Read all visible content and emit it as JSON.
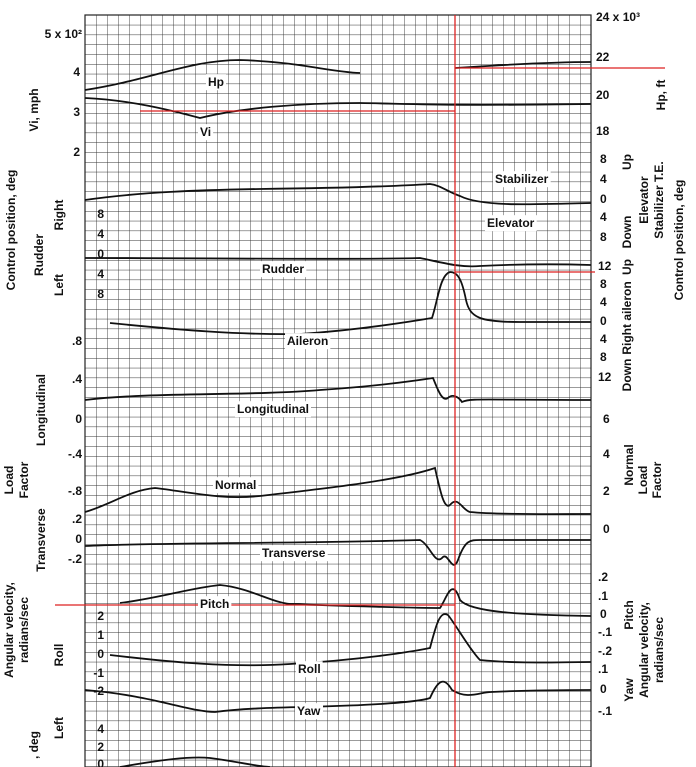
{
  "left_ticks": [
    "5 x 10²",
    "4",
    "3",
    "2",
    "8",
    "4",
    "0",
    "4",
    "8",
    ".8",
    ".4",
    "0",
    "-.4",
    "-.8",
    ".2",
    "0",
    "-.2",
    "2",
    "1",
    "0",
    "-1",
    "-2",
    "4",
    "2",
    "0"
  ],
  "right_ticks": [
    "24 x 10³",
    "22",
    "20",
    "18",
    "8",
    "4",
    "0",
    "4",
    "8",
    "12",
    "8",
    "4",
    "0",
    "4",
    "8",
    "12",
    "6",
    "4",
    "2",
    "0",
    ".2",
    ".1",
    "0",
    "-.1",
    "-.2",
    ".1",
    "0",
    "-.1"
  ],
  "axis_titles": [
    "Vi, mph",
    "Right",
    "Control position, deg",
    "Rudder",
    "Left",
    "Longitudinal",
    "Load",
    "Factor",
    "Transverse",
    "Roll",
    "Angular velocity,",
    "radians/sec",
    "Left",
    ", deg",
    "Hp, ft",
    "Up",
    "Down",
    "Elevator",
    "Stabilizer T.E.",
    "Up",
    "Down",
    "Right aileron",
    "Control position, deg",
    "Normal",
    "Load",
    "Factor",
    "Pitch",
    "Yaw",
    "Angular velocity,",
    "radians/sec"
  ],
  "trace_labels": [
    "Hp",
    "Vi",
    "Stabilizer",
    "Elevator",
    "Rudder",
    "Aileron",
    "Longitudinal",
    "Normal",
    "Transverse",
    "Pitch",
    "Roll",
    "Yaw"
  ]
}
